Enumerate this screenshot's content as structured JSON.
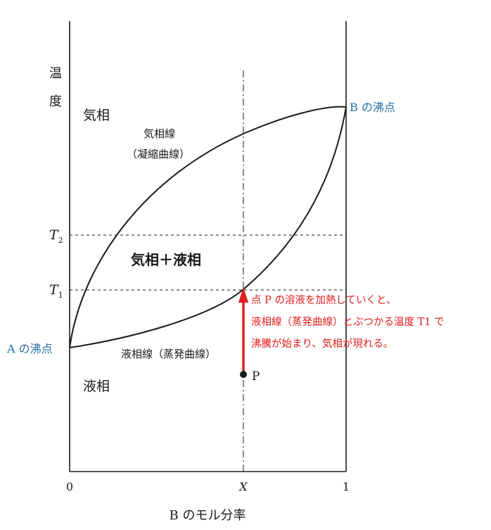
{
  "diagram": {
    "y_axis_label_1": "温",
    "y_axis_label_2": "度",
    "x_axis_label": "B のモル分率",
    "x_tick_0": "0",
    "x_tick_x": "X",
    "x_tick_1": "1",
    "t2_label": "T",
    "t2_sub": "2",
    "t1_label": "T",
    "t1_sub": "1",
    "region_gas": "気相",
    "region_two_phase": "気相＋液相",
    "region_liquid": "液相",
    "vapor_curve_label_1": "気相線",
    "vapor_curve_label_2": "（凝縮曲線）",
    "liquid_curve_label": "液相線（蒸発曲線）",
    "boiling_point_a": "A の沸点",
    "boiling_point_b": "B の沸点",
    "point_p": "P",
    "annotation_line_1": "点 P の溶液を加熱していくと、",
    "annotation_line_2": "液相線（蒸発曲線）とぶつかる温度 T1 で",
    "annotation_line_3": "沸騰が始まり、気相が現れる。",
    "colors": {
      "ink": "#1a1a1a",
      "accent_blue": "#2a6ea8",
      "accent_red": "#e01e1e"
    }
  }
}
